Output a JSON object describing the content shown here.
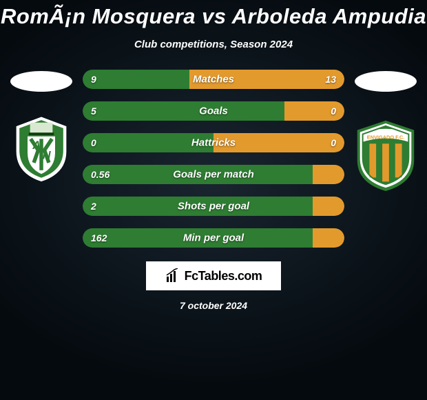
{
  "title": "RomÃ¡n Mosquera vs Arboleda Ampudia",
  "subtitle": "Club competitions, Season 2024",
  "date": "7 october 2024",
  "branding": {
    "site": "FcTables.com"
  },
  "colors": {
    "left_bar": "#2e7d32",
    "right_bar": "#e39a2d",
    "track": "#254052",
    "text": "#ffffff"
  },
  "crest_left": {
    "outer": "#2e7d32",
    "inner": "#ffffff",
    "detail": "#0b3d0b"
  },
  "crest_right": {
    "outer": "#2e7d32",
    "band": "#ffffff",
    "stripes": [
      "#e39a2d",
      "#2e7d32",
      "#e39a2d",
      "#2e7d32",
      "#e39a2d"
    ],
    "text": "ENVIGADO F.C."
  },
  "stats": [
    {
      "label": "Matches",
      "left_val": "9",
      "right_val": "13",
      "left_pct": 40.9,
      "right_pct": 59.1
    },
    {
      "label": "Goals",
      "left_val": "5",
      "right_val": "0",
      "left_pct": 77.0,
      "right_pct": 23.0
    },
    {
      "label": "Hattricks",
      "left_val": "0",
      "right_val": "0",
      "left_pct": 50.0,
      "right_pct": 50.0
    },
    {
      "label": "Goals per match",
      "left_val": "0.56",
      "right_val": "",
      "left_pct": 88.0,
      "right_pct": 12.0
    },
    {
      "label": "Shots per goal",
      "left_val": "2",
      "right_val": "",
      "left_pct": 88.0,
      "right_pct": 12.0
    },
    {
      "label": "Min per goal",
      "left_val": "162",
      "right_val": "",
      "left_pct": 88.0,
      "right_pct": 12.0
    }
  ]
}
